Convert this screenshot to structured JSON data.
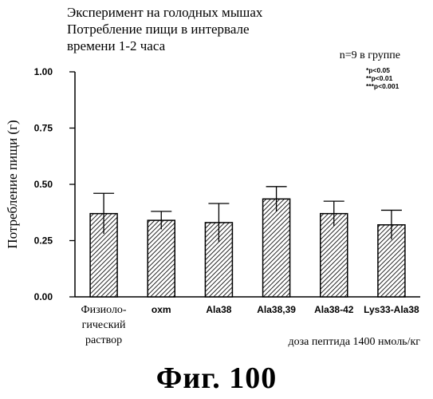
{
  "chart_data": {
    "type": "bar",
    "title_lines": [
      "Эксперимент на голодных мышах",
      "Потребление пищи в интервале",
      "времени 1-2 часа"
    ],
    "ylabel": "Потребление пищи (г)",
    "xlabel": "доза пептида 1400 нмоль/кг",
    "ylim": [
      0.0,
      1.0
    ],
    "yticks": [
      "0.00",
      "0.25",
      "0.50",
      "0.75",
      "1.00"
    ],
    "ytick_values": [
      0.0,
      0.25,
      0.5,
      0.75,
      1.0
    ],
    "categories": [
      [
        "Физиоло-",
        "гический",
        "раствор"
      ],
      [
        "oxm"
      ],
      [
        "Ala38"
      ],
      [
        "Ala38,39"
      ],
      [
        "Ala38-42"
      ],
      [
        "Lys33-Ala38"
      ]
    ],
    "values": [
      0.37,
      0.34,
      0.33,
      0.435,
      0.37,
      0.32
    ],
    "error": [
      0.09,
      0.04,
      0.085,
      0.055,
      0.055,
      0.065
    ],
    "group_note": "n=9 в группе",
    "significance": [
      "*p<0.05",
      "**p<0.01",
      "***p<0.001"
    ],
    "fill": "diagonal-hatch",
    "grid": false
  },
  "caption": "Фиг.  100",
  "colors": {
    "ink": "#000000",
    "background": "#ffffff"
  }
}
